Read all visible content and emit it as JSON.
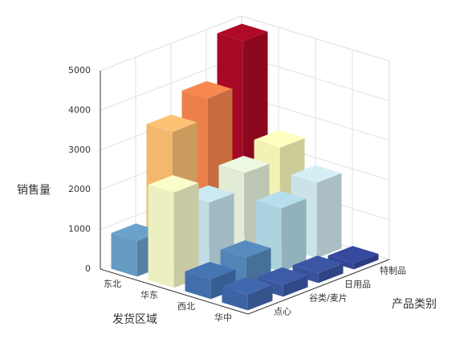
{
  "chart_data": {
    "type": "bar3d",
    "y_label": "销售量",
    "x_label": "发货区域",
    "depth_label": "产品类别",
    "categories": [
      "东北",
      "华东",
      "西北",
      "华中"
    ],
    "series": [
      {
        "name": "点心",
        "values": [
          900,
          2400,
          500,
          400
        ]
      },
      {
        "name": "谷类/麦片",
        "values": [
          3300,
          1800,
          700,
          300
        ]
      },
      {
        "name": "日用品",
        "values": [
          3800,
          2200,
          1600,
          250
        ]
      },
      {
        "name": "特制品",
        "values": [
          4900,
          2500,
          1900,
          150
        ]
      }
    ],
    "ylim": [
      0,
      5000
    ],
    "yticks": [
      0,
      1000,
      2000,
      3000,
      4000,
      5000
    ],
    "colors": [
      "#313695",
      "#4575b4",
      "#74add1",
      "#abd9e9",
      "#e0f3f8",
      "#ffffbf",
      "#fee090",
      "#fdae61",
      "#f46d43",
      "#d73027",
      "#a50026"
    ],
    "grid": true
  }
}
